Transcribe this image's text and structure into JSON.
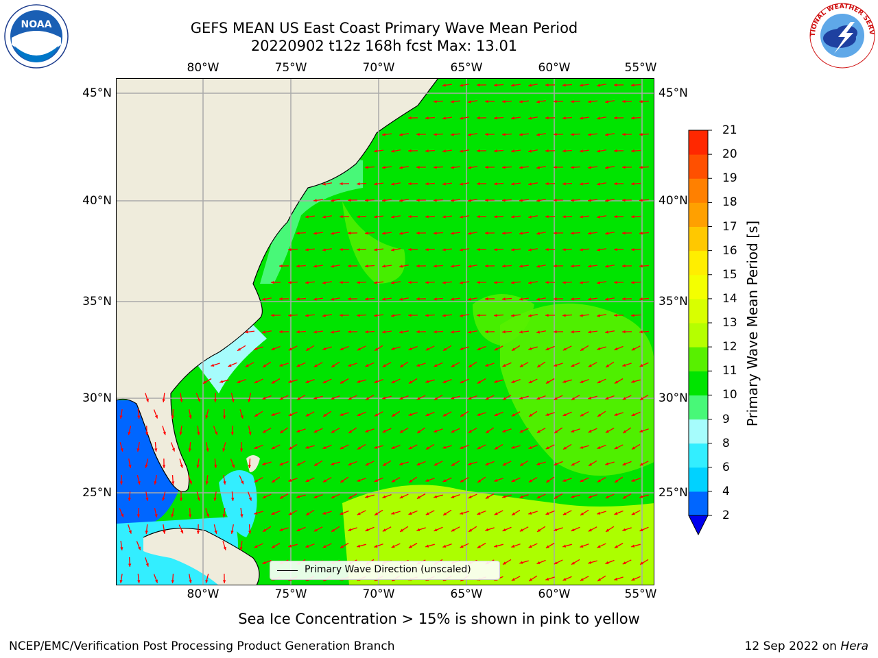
{
  "title": {
    "line1": "GEFS MEAN US East Coast Primary Wave Mean Period",
    "line2": "20220902 t12z 168h fcst   Max: 13.01"
  },
  "logos": {
    "left": {
      "name": "noaa-logo",
      "text": "NOAA"
    },
    "right": {
      "name": "national-weather-service-logo",
      "text": "NATIONAL WEATHER SERVICE"
    }
  },
  "map": {
    "lon_labels": [
      "80°W",
      "75°W",
      "70°W",
      "65°W",
      "60°W",
      "55°W"
    ],
    "lat_labels": [
      "45°N",
      "40°N",
      "35°N",
      "30°N",
      "25°N"
    ],
    "land_color": "#efecdc",
    "ocean_color": "#00e400",
    "legend_label": "Primary Wave Direction (unscaled)",
    "arrow_color": "#ff0000"
  },
  "colorbar": {
    "title": "Primary Wave Mean Period [s]",
    "levels": [
      "2",
      "4",
      "6",
      "8",
      "9",
      "10",
      "11",
      "12",
      "13",
      "14",
      "15",
      "16",
      "17",
      "18",
      "19",
      "20",
      "21"
    ],
    "colors": [
      "#0066ff",
      "#00d2ff",
      "#33eeff",
      "#a6fcfc",
      "#48f878",
      "#00e400",
      "#58f000",
      "#b5ff00",
      "#d8ff00",
      "#f4ff00",
      "#ffee00",
      "#ffc800",
      "#ffa000",
      "#ff8000",
      "#ff5000",
      "#ff2800"
    ],
    "extend_low_color": "#0000ee"
  },
  "footer": {
    "note": "Sea Ice Concentration > 15% is shown in pink to yellow",
    "credit": "NCEP/EMC/Verification Post Processing Product Generation Branch",
    "date": "12 Sep 2022 on ",
    "machine": "Hera"
  }
}
